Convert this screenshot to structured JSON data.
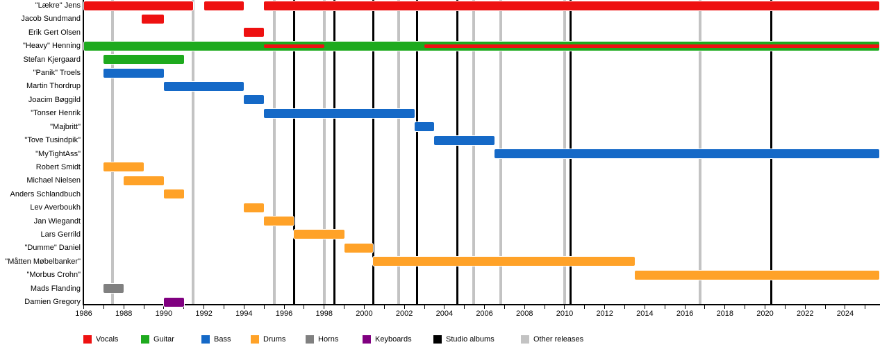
{
  "chart_data": {
    "type": "timeline",
    "title": "",
    "x_axis": {
      "start": 1986,
      "end": 2025.7,
      "tick_label_years": [
        1986,
        1988,
        1990,
        1992,
        1994,
        1996,
        1998,
        2000,
        2002,
        2004,
        2006,
        2008,
        2010,
        2012,
        2014,
        2016,
        2018,
        2020,
        2022,
        2024
      ],
      "minor_tick_every_years": 1
    },
    "colors": {
      "vocals": "#ee1111",
      "guitar": "#1eaa1e",
      "bass": "#1569c7",
      "drums": "#ffa228",
      "horns": "#808080",
      "keyboards": "#800080",
      "studio_albums": "#000000",
      "other_releases": "#c3c3c3"
    },
    "members": [
      {
        "name": "\"Lækre\" Jens",
        "role": "vocals",
        "periods": [
          [
            1986.0,
            1991.45
          ],
          [
            1992.0,
            1994.0
          ],
          [
            1995.0,
            2025.7
          ]
        ]
      },
      {
        "name": "Jacob Sundmand",
        "role": "vocals",
        "periods": [
          [
            1988.9,
            1990.0
          ]
        ]
      },
      {
        "name": "Erik Gert Olsen",
        "role": "vocals",
        "periods": [
          [
            1994.0,
            1995.0
          ]
        ]
      },
      {
        "name": "\"Heavy\" Henning",
        "role": "guitar",
        "periods": [
          [
            1986.0,
            2025.7
          ]
        ],
        "overlay_role": "vocals",
        "overlay_periods": [
          [
            1995.0,
            1998.0
          ],
          [
            2003.0,
            2025.7
          ]
        ]
      },
      {
        "name": "Stefan Kjergaard",
        "role": "guitar",
        "periods": [
          [
            1987.0,
            1991.0
          ]
        ]
      },
      {
        "name": "\"Panik\" Troels",
        "role": "bass",
        "periods": [
          [
            1987.0,
            1990.0
          ]
        ]
      },
      {
        "name": "Martin Thordrup",
        "role": "bass",
        "periods": [
          [
            1990.0,
            1994.0
          ]
        ]
      },
      {
        "name": "Joacim Bøggild",
        "role": "bass",
        "periods": [
          [
            1994.0,
            1995.0
          ]
        ]
      },
      {
        "name": "\"Tonser Henrik",
        "role": "bass",
        "periods": [
          [
            1995.0,
            2002.5
          ]
        ]
      },
      {
        "name": "\"Majbritt\"",
        "role": "bass",
        "periods": [
          [
            2002.5,
            2003.5
          ]
        ]
      },
      {
        "name": "\"Tove Tusindpik\"",
        "role": "bass",
        "periods": [
          [
            2003.5,
            2006.5
          ]
        ]
      },
      {
        "name": "\"MyTightAss\"",
        "role": "bass",
        "periods": [
          [
            2006.5,
            2025.7
          ]
        ]
      },
      {
        "name": "Robert Smidt",
        "role": "drums",
        "periods": [
          [
            1987.0,
            1989.0
          ]
        ]
      },
      {
        "name": "Michael Nielsen",
        "role": "drums",
        "periods": [
          [
            1988.0,
            1990.0
          ]
        ]
      },
      {
        "name": "Anders Schlandbuch",
        "role": "drums",
        "periods": [
          [
            1990.0,
            1991.0
          ]
        ]
      },
      {
        "name": "Lev Averboukh",
        "role": "drums",
        "periods": [
          [
            1994.0,
            1995.0
          ]
        ]
      },
      {
        "name": "Jan Wiegandt",
        "role": "drums",
        "periods": [
          [
            1995.0,
            1996.5
          ]
        ]
      },
      {
        "name": "Lars Gerrild",
        "role": "drums",
        "periods": [
          [
            1996.5,
            1999.0
          ]
        ]
      },
      {
        "name": "\"Dumme\" Daniel",
        "role": "drums",
        "periods": [
          [
            1999.0,
            2000.45
          ]
        ]
      },
      {
        "name": "\"Måtten Møbelbanker\"",
        "role": "drums",
        "periods": [
          [
            2000.45,
            2013.5
          ]
        ]
      },
      {
        "name": "\"Morbus Crohn\"",
        "role": "drums",
        "periods": [
          [
            2013.5,
            2025.7
          ]
        ]
      },
      {
        "name": "Mads Flanding",
        "role": "horns",
        "periods": [
          [
            1987.0,
            1988.0
          ]
        ]
      },
      {
        "name": "Damien Gregory",
        "role": "keyboards",
        "periods": [
          [
            1990.0,
            1991.0
          ]
        ]
      }
    ],
    "event_lines": {
      "studio_albums": [
        1996.5,
        1998.5,
        2000.45,
        2002.65,
        2004.65,
        2010.3,
        2020.3
      ],
      "other_releases": [
        1987.45,
        1991.45,
        1995.5,
        1998.0,
        2001.7,
        2005.45,
        2006.8,
        2010.0,
        2016.75
      ]
    },
    "legend": [
      {
        "label": "Vocals",
        "role": "vocals"
      },
      {
        "label": "Guitar",
        "role": "guitar"
      },
      {
        "label": "Bass",
        "role": "bass"
      },
      {
        "label": "Drums",
        "role": "drums"
      },
      {
        "label": "Horns",
        "role": "horns"
      },
      {
        "label": "Keyboards",
        "role": "keyboards"
      },
      {
        "label": "Studio albums",
        "role": "studio_albums"
      },
      {
        "label": "Other releases",
        "role": "other_releases"
      }
    ],
    "legend_position": "bottom",
    "grid": "vertical-event-lines"
  }
}
